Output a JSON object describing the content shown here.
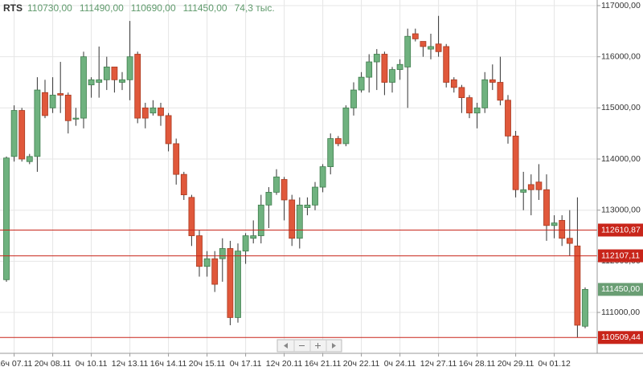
{
  "chart_data": {
    "type": "candlestick",
    "header": {
      "symbol": "RTS",
      "values": [
        "110730,00",
        "111490,00",
        "110690,00",
        "111450,00",
        "74,3 тыс."
      ]
    },
    "categories": [
      null,
      "16ч 07.11",
      null,
      null,
      null,
      null,
      "20ч 08.11",
      null,
      null,
      null,
      null,
      "0ч 10.11",
      null,
      null,
      null,
      null,
      "12ч 13.11",
      null,
      null,
      null,
      null,
      "16ч 14.11",
      null,
      null,
      null,
      null,
      "20ч 15.11",
      null,
      null,
      null,
      null,
      "0ч 17.11",
      null,
      null,
      null,
      null,
      "12ч 20.11",
      null,
      null,
      null,
      null,
      "16ч 21.11",
      null,
      null,
      null,
      null,
      "20ч 22.11",
      null,
      null,
      null,
      null,
      "0ч 24.11",
      null,
      null,
      null,
      null,
      "12ч 27.11",
      null,
      null,
      null,
      null,
      "16ч 28.11",
      null,
      null,
      null,
      null,
      "20ч 29.11",
      null,
      null,
      null,
      null,
      "0ч 01.12",
      null,
      null,
      null,
      null
    ],
    "open": [
      111640,
      114050,
      114950,
      113950,
      114050,
      115300,
      115000,
      115280,
      115250,
      114780,
      114800,
      115450,
      115500,
      115550,
      115800,
      115500,
      115550,
      116050,
      115000,
      114900,
      115000,
      114850,
      114300,
      113700,
      113250,
      112500,
      111900,
      112050,
      112050,
      112250,
      110900,
      112200,
      112450,
      112500,
      113100,
      113350,
      113600,
      113200,
      112450,
      113050,
      113100,
      113450,
      113850,
      114400,
      114300,
      115000,
      115350,
      115600,
      115900,
      116050,
      115500,
      115750,
      115800,
      116450,
      116300,
      116150,
      116250,
      116200,
      115550,
      115400,
      115200,
      114900,
      115000,
      115550,
      115500,
      115150,
      114450,
      113350,
      113500,
      113550,
      113400,
      112700,
      112800,
      112450,
      112300,
      110730
    ],
    "high": [
      114050,
      115050,
      115000,
      114100,
      115600,
      115550,
      115600,
      115900,
      115300,
      115000,
      116100,
      115600,
      116200,
      116000,
      115800,
      115700,
      116700,
      116100,
      115100,
      115150,
      115100,
      114900,
      114400,
      113750,
      113300,
      112600,
      112200,
      112200,
      112450,
      112400,
      112350,
      112550,
      112800,
      113300,
      113450,
      113800,
      113650,
      113300,
      113250,
      113250,
      113550,
      113900,
      114500,
      114450,
      115050,
      115500,
      115700,
      116050,
      116150,
      116100,
      115800,
      115950,
      116550,
      116550,
      116300,
      116450,
      116800,
      116250,
      115600,
      115450,
      115250,
      115100,
      115700,
      115850,
      116000,
      115250,
      114550,
      113750,
      113700,
      113900,
      113700,
      112900,
      112900,
      113000,
      113250,
      111490
    ],
    "low": [
      111600,
      113950,
      113950,
      113900,
      113750,
      114800,
      114900,
      114900,
      114500,
      114650,
      114600,
      115200,
      115200,
      115350,
      115300,
      115350,
      115150,
      114700,
      114600,
      114850,
      114650,
      114150,
      113500,
      113200,
      112300,
      111700,
      111700,
      111400,
      111600,
      110750,
      110800,
      111950,
      112350,
      112350,
      112650,
      113300,
      112800,
      112300,
      112250,
      112900,
      113000,
      113350,
      113700,
      114250,
      114250,
      114850,
      115300,
      115300,
      115350,
      115250,
      115300,
      115550,
      115000,
      116300,
      116000,
      115950,
      116000,
      115400,
      115300,
      114900,
      114800,
      114600,
      114900,
      115350,
      115050,
      114300,
      113250,
      113000,
      112900,
      113200,
      112400,
      112450,
      112300,
      112100,
      110509,
      110690
    ],
    "close": [
      114020,
      114950,
      114000,
      114050,
      115350,
      114850,
      115250,
      115250,
      114750,
      114800,
      116000,
      115550,
      115550,
      115800,
      115550,
      115550,
      116000,
      114800,
      114800,
      115000,
      114850,
      114300,
      113700,
      113300,
      112500,
      111900,
      112050,
      111550,
      112250,
      110900,
      112200,
      112500,
      112500,
      113100,
      113350,
      113650,
      113200,
      112450,
      113100,
      113100,
      113450,
      113850,
      114400,
      114300,
      115000,
      115350,
      115600,
      115900,
      116050,
      115500,
      115750,
      115850,
      116400,
      116350,
      116200,
      116200,
      116100,
      115500,
      115400,
      115200,
      114900,
      115000,
      115550,
      115500,
      115150,
      114450,
      113400,
      113400,
      113400,
      113400,
      112700,
      112750,
      112450,
      112350,
      110750,
      111450
    ],
    "up_color": "#6fb27f",
    "down_color": "#e0583b",
    "ylim": [
      110200,
      117110
    ],
    "yticks": [
      {
        "value": 111000,
        "label": "111000,00"
      },
      {
        "value": 112000,
        "label": "112000,00"
      },
      {
        "value": 113000,
        "label": "113000,00"
      },
      {
        "value": 114000,
        "label": "114000,00"
      },
      {
        "value": 115000,
        "label": "115000,00"
      },
      {
        "value": 116000,
        "label": "116000,00"
      },
      {
        "value": 117000,
        "label": "117000,00"
      }
    ],
    "levels": [
      {
        "value": 112610.87,
        "label": "112610,87"
      },
      {
        "value": 112107.11,
        "label": "112107,11"
      },
      {
        "value": 110509.44,
        "label": "110509,44"
      }
    ],
    "level_color": "#c8251a",
    "last_price": {
      "value": 111450,
      "label": "111450,00"
    },
    "grid": true
  }
}
